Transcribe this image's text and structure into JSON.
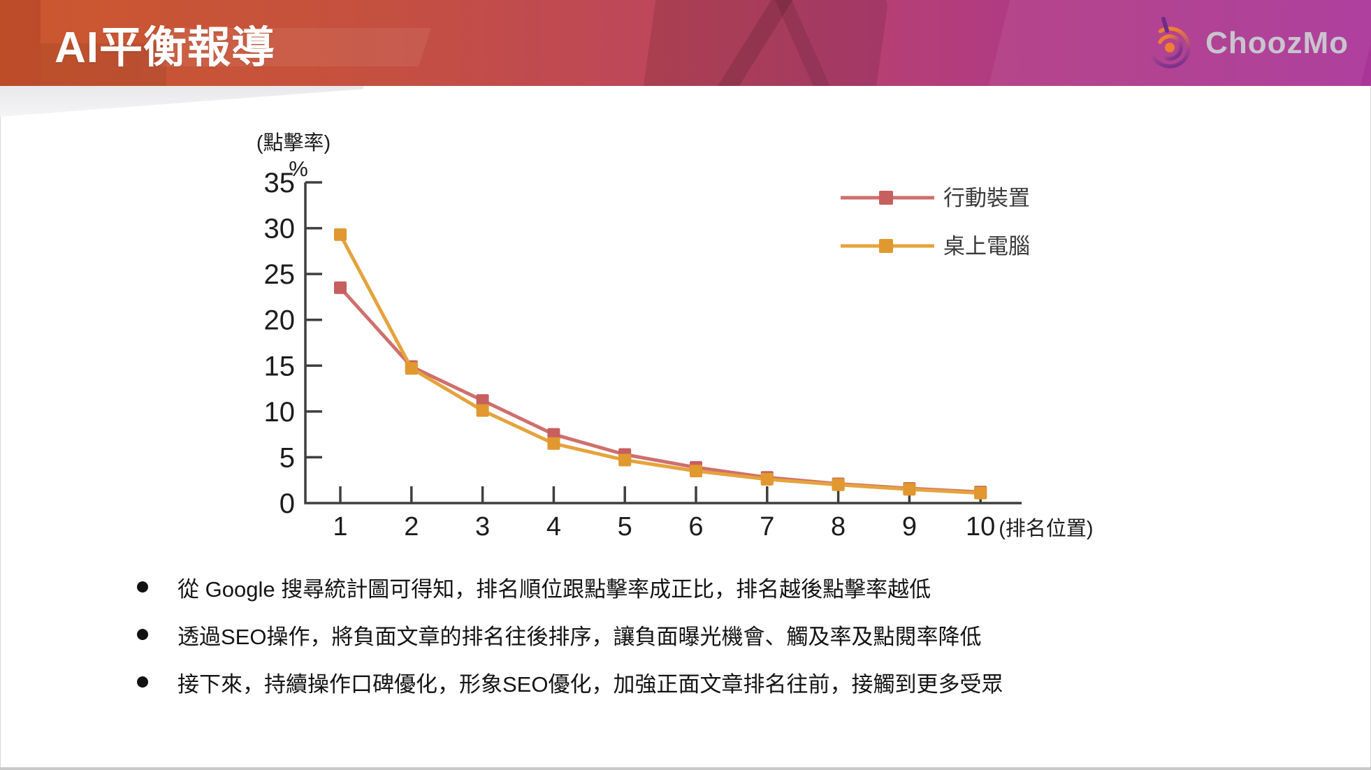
{
  "header": {
    "title": "AI平衡報導",
    "logo_text": "ChoozMo"
  },
  "chart_data": {
    "type": "line",
    "title": "",
    "y_axis_title_line1": "(點擊率)",
    "y_axis_title_line2": "%",
    "x_axis_suffix": "(排名位置)",
    "x": [
      1,
      2,
      3,
      4,
      5,
      6,
      7,
      8,
      9,
      10
    ],
    "xlabel": "排名位置",
    "ylabel": "點擊率 %",
    "ylim": [
      0,
      35
    ],
    "y_ticks": [
      0,
      5,
      10,
      15,
      20,
      25,
      30,
      35
    ],
    "grid": false,
    "legend_position": "top-right",
    "series": [
      {
        "name": "行動裝置",
        "color": "#cf6f6d",
        "marker_color": "#c75f5f",
        "values": [
          23.5,
          14.9,
          11.2,
          7.5,
          5.3,
          3.9,
          2.8,
          2.1,
          1.6,
          1.2
        ]
      },
      {
        "name": "桌上電腦",
        "color": "#e5a33d",
        "marker_color": "#e0982f",
        "values": [
          29.3,
          14.7,
          10.1,
          6.5,
          4.7,
          3.5,
          2.6,
          2.0,
          1.5,
          1.1
        ]
      }
    ]
  },
  "bullets": [
    "從 Google 搜尋統計圖可得知，排名順位跟點擊率成正比，排名越後點擊率越低",
    "透過SEO操作，將負面文章的排名往後排序，讓負面曝光機會、觸及率及點閱率降低",
    "接下來，持續操作口碑優化，形象SEO優化，加強正面文章排名往前，接觸到更多受眾"
  ],
  "colors": {
    "header_gradient_start": "#cc582e",
    "header_gradient_end": "#aa3598",
    "logo_orange": "#ef8030",
    "logo_purple": "#6e2d8a",
    "axis": "#3f3f3f",
    "text": "#141414",
    "logo_text": "#c9c4ce"
  }
}
